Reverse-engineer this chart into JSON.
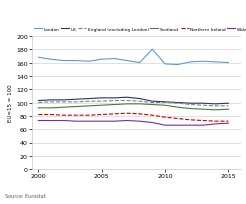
{
  "years": [
    2000,
    2001,
    2002,
    2003,
    2004,
    2005,
    2006,
    2007,
    2008,
    2009,
    2010,
    2011,
    2012,
    2013,
    2014,
    2015
  ],
  "london": [
    168,
    165,
    163,
    163,
    162,
    165,
    166,
    163,
    160,
    180,
    158,
    157,
    161,
    162,
    161,
    160
  ],
  "uk": [
    103,
    104,
    104,
    105,
    106,
    107,
    107,
    108,
    106,
    102,
    101,
    100,
    99,
    99,
    98,
    99
  ],
  "england_excl_london": [
    100,
    101,
    101,
    101,
    102,
    102,
    103,
    103,
    102,
    100,
    100,
    99,
    97,
    96,
    95,
    95
  ],
  "scotland": [
    92,
    92,
    93,
    94,
    95,
    96,
    97,
    98,
    98,
    97,
    96,
    93,
    91,
    90,
    89,
    90
  ],
  "northern_ireland": [
    82,
    82,
    81,
    81,
    81,
    82,
    83,
    84,
    83,
    81,
    78,
    76,
    74,
    73,
    72,
    72
  ],
  "wales": [
    73,
    73,
    73,
    72,
    72,
    72,
    72,
    73,
    72,
    70,
    66,
    66,
    66,
    66,
    68,
    69
  ],
  "series_colors": {
    "london": "#5b9bd5",
    "uk": "#203864",
    "england_excl_london": "#808080",
    "scotland": "#4a7c2f",
    "northern_ireland": "#c00000",
    "wales": "#7030a0"
  },
  "series_labels": {
    "london": "London",
    "uk": "UK",
    "england_excl_london": "England (excluding London)",
    "scotland": "Scotland",
    "northern_ireland": "Northern Ireland",
    "wales": "Wales"
  },
  "series_styles": {
    "london": {
      "linestyle": "-",
      "linewidth": 0.8
    },
    "uk": {
      "linestyle": "-",
      "linewidth": 0.8
    },
    "england_excl_london": {
      "linestyle": "--",
      "linewidth": 0.8
    },
    "scotland": {
      "linestyle": "-",
      "linewidth": 0.8
    },
    "northern_ireland": {
      "linestyle": "--",
      "linewidth": 0.8
    },
    "wales": {
      "linestyle": "-",
      "linewidth": 0.8
    }
  },
  "ylim": [
    0,
    200
  ],
  "yticks": [
    0,
    20,
    40,
    60,
    80,
    100,
    120,
    140,
    160,
    180,
    200
  ],
  "xlim": [
    1999.5,
    2016
  ],
  "xticks": [
    2000,
    2005,
    2010,
    2015
  ],
  "ylabel": "EU=15 = 100",
  "source": "Source: Eurostat",
  "background_color": "#ffffff",
  "grid_color": "#c8c8c8"
}
